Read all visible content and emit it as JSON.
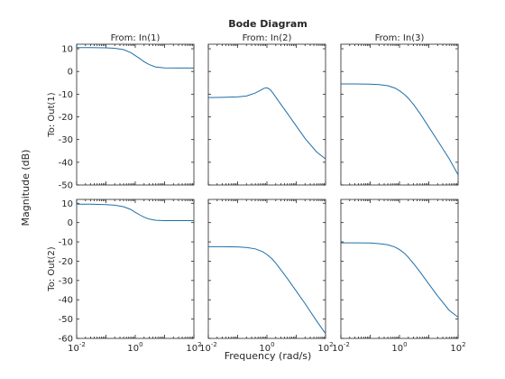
{
  "chart_data": {
    "type": "line",
    "title": "Bode Diagram",
    "xlabel": "Frequency  (rad/s)",
    "ylabel": "Magnitude (dB)",
    "x_scale": "log",
    "xlim": [
      0.01,
      100
    ],
    "x_ticks": [
      0.01,
      1,
      100
    ],
    "x_tick_labels": [
      {
        "base": "10",
        "exp": "-2"
      },
      {
        "base": "10",
        "exp": "0"
      },
      {
        "base": "10",
        "exp": "2"
      }
    ],
    "columns": [
      "From: In(1)",
      "From: In(2)",
      "From: In(3)"
    ],
    "rows": [
      {
        "label": "To: Out(1)",
        "ylim": [
          -50,
          12
        ],
        "y_ticks": [
          10,
          0,
          -10,
          -20,
          -30,
          -40,
          -50
        ],
        "series": [
          {
            "x": [
              0.01,
              0.03,
              0.1,
              0.2,
              0.4,
              0.7,
              1,
              1.5,
              2,
              3,
              5,
              10,
              30,
              100
            ],
            "y": [
              10.5,
              10.5,
              10.4,
              10.2,
              9.6,
              8.3,
              7.0,
              5.5,
              4.3,
              3.0,
              2.0,
              1.6,
              1.5,
              1.5
            ]
          },
          {
            "x": [
              0.01,
              0.03,
              0.1,
              0.2,
              0.4,
              0.6,
              0.8,
              1.0,
              1.3,
              1.6,
              2,
              3,
              5,
              10,
              20,
              50,
              100
            ],
            "y": [
              -11.5,
              -11.4,
              -11.2,
              -10.8,
              -9.5,
              -8.3,
              -7.4,
              -7.2,
              -8.0,
              -9.5,
              -11.3,
              -14.5,
              -18.5,
              -24.0,
              -29.5,
              -35.5,
              -38.5
            ]
          },
          {
            "x": [
              0.01,
              0.03,
              0.1,
              0.2,
              0.4,
              0.7,
              1,
              1.5,
              2,
              3,
              5,
              10,
              20,
              50,
              100
            ],
            "y": [
              -5.5,
              -5.5,
              -5.6,
              -5.8,
              -6.3,
              -7.3,
              -8.5,
              -10.2,
              -11.8,
              -14.5,
              -18.5,
              -24.5,
              -30.5,
              -38.5,
              -45.5
            ]
          }
        ]
      },
      {
        "label": "To: Out(2)",
        "ylim": [
          -60,
          12
        ],
        "y_ticks": [
          10,
          0,
          -10,
          -20,
          -30,
          -40,
          -50,
          -60
        ],
        "series": [
          {
            "x": [
              0.01,
              0.03,
              0.1,
              0.2,
              0.4,
              0.7,
              1,
              1.5,
              2,
              3,
              5,
              10,
              30,
              100
            ],
            "y": [
              9.5,
              9.5,
              9.3,
              9.0,
              8.2,
              6.8,
              5.3,
              3.8,
              2.8,
              1.8,
              1.2,
              1.0,
              1.0,
              1.0
            ]
          },
          {
            "x": [
              0.01,
              0.03,
              0.1,
              0.2,
              0.4,
              0.7,
              1,
              1.5,
              2,
              3,
              5,
              10,
              20,
              50,
              100
            ],
            "y": [
              -12.5,
              -12.5,
              -12.6,
              -12.9,
              -13.6,
              -15.0,
              -16.5,
              -18.8,
              -21.0,
              -24.5,
              -29.0,
              -35.5,
              -42.0,
              -51.0,
              -57.5
            ]
          },
          {
            "x": [
              0.01,
              0.03,
              0.1,
              0.2,
              0.4,
              0.7,
              1,
              1.5,
              2,
              3,
              5,
              10,
              20,
              50,
              100
            ],
            "y": [
              -10.5,
              -10.5,
              -10.6,
              -10.9,
              -11.5,
              -12.7,
              -14.0,
              -16.0,
              -18.0,
              -21.2,
              -25.5,
              -31.8,
              -38.0,
              -45.5,
              -49.0
            ]
          }
        ]
      }
    ],
    "grid": false,
    "legend": "none"
  }
}
